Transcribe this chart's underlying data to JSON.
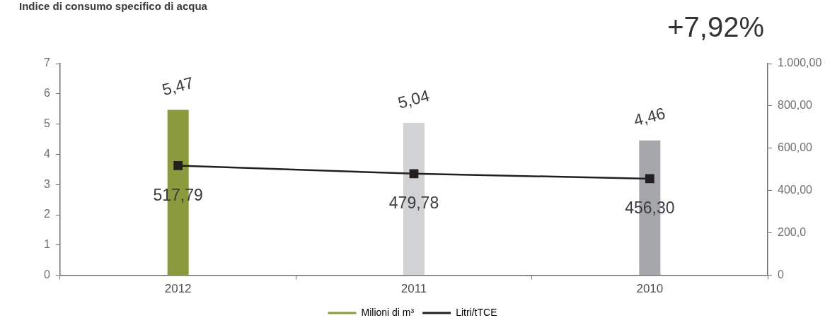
{
  "chart_data": {
    "type": "bar",
    "title": "Indice di consumo specifico di acqua",
    "annotations": [
      "+7,92%"
    ],
    "categories": [
      "2012",
      "2011",
      "2010"
    ],
    "series": [
      {
        "name": "Milioni di m³",
        "color": "#8a9a3c",
        "colors": [
          "#8a9a3c",
          "#d1d2d4",
          "#a6a7aa"
        ],
        "values": [
          5.47,
          5.04,
          4.46
        ],
        "value_labels": [
          "5,47",
          "5,04",
          "4,46"
        ]
      },
      {
        "name": "Litri/tTCE",
        "type": "line",
        "axis": "y2",
        "color": "#231f20",
        "marker": "square",
        "values": [
          517.79,
          479.78,
          456.3
        ],
        "value_labels": [
          "517,79",
          "479,78",
          "456,30"
        ]
      }
    ],
    "ylim": [
      0,
      7
    ],
    "yticks": [
      0,
      1,
      2,
      3,
      4,
      5,
      6,
      7
    ],
    "y2lim": [
      0,
      1000
    ],
    "y2ticks": [
      0,
      {
        "value": 200,
        "label": "200,0"
      },
      {
        "value": 400,
        "label": "400,00"
      },
      {
        "value": 600,
        "label": "600,00"
      },
      {
        "value": 800,
        "label": "800,00"
      },
      {
        "value": 1000,
        "label": "1.000,00"
      }
    ],
    "grid": false,
    "legend": "bottom"
  }
}
